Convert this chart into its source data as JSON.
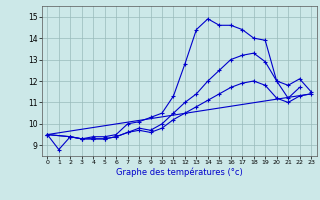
{
  "xlabel": "Graphe des températures (°c)",
  "xlim": [
    -0.5,
    23.5
  ],
  "ylim": [
    8.5,
    15.5
  ],
  "yticks": [
    9,
    10,
    11,
    12,
    13,
    14,
    15
  ],
  "xticks": [
    0,
    1,
    2,
    3,
    4,
    5,
    6,
    7,
    8,
    9,
    10,
    11,
    12,
    13,
    14,
    15,
    16,
    17,
    18,
    19,
    20,
    21,
    22,
    23
  ],
  "background_color": "#cce8e8",
  "line_color": "#0000cc",
  "grid_color": "#99bbbb",
  "line1_x": [
    0,
    1,
    2,
    3,
    4,
    5,
    6,
    7,
    8,
    9,
    10,
    11,
    12,
    13,
    14,
    15,
    16,
    17,
    18,
    19,
    20,
    21,
    22
  ],
  "line1_y": [
    9.5,
    8.8,
    9.4,
    9.3,
    9.4,
    9.4,
    9.5,
    10.0,
    10.1,
    10.3,
    10.5,
    11.3,
    12.8,
    14.4,
    14.9,
    14.6,
    14.6,
    14.4,
    14.0,
    13.9,
    12.0,
    11.2,
    11.7
  ],
  "line2_x": [
    0,
    2,
    3,
    4,
    5,
    6,
    7,
    8,
    9,
    10,
    11,
    12,
    13,
    14,
    15,
    16,
    17,
    18,
    19,
    20,
    21,
    22,
    23
  ],
  "line2_y": [
    9.5,
    9.4,
    9.3,
    9.3,
    9.3,
    9.4,
    9.6,
    9.8,
    9.7,
    10.0,
    10.5,
    11.0,
    11.4,
    12.0,
    12.5,
    13.0,
    13.2,
    13.3,
    12.9,
    12.0,
    11.8,
    12.1,
    11.5
  ],
  "line3_x": [
    0,
    2,
    3,
    4,
    5,
    6,
    7,
    8,
    9,
    10,
    11,
    12,
    13,
    14,
    15,
    16,
    17,
    18,
    19,
    20,
    21,
    22,
    23
  ],
  "line3_y": [
    9.5,
    9.4,
    9.3,
    9.3,
    9.3,
    9.4,
    9.6,
    9.7,
    9.6,
    9.8,
    10.2,
    10.5,
    10.8,
    11.1,
    11.4,
    11.7,
    11.9,
    12.0,
    11.8,
    11.2,
    11.0,
    11.3,
    11.4
  ],
  "line4_x": [
    0,
    23
  ],
  "line4_y": [
    9.5,
    11.4
  ]
}
